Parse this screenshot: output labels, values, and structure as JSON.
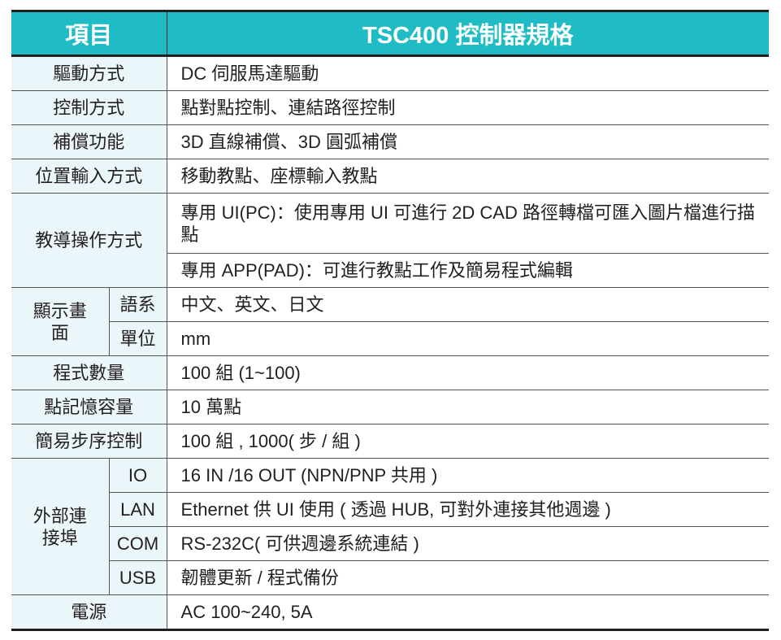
{
  "header": {
    "item": "項目",
    "spec": "TSC400 控制器規格"
  },
  "rows": {
    "drive": {
      "label": "驅動方式",
      "value": "DC 伺服馬達驅動"
    },
    "control": {
      "label": "控制方式",
      "value": "點對點控制、連結路徑控制"
    },
    "comp": {
      "label": "補償功能",
      "value": "3D 直線補償、3D 圓弧補償"
    },
    "pos": {
      "label": "位置輸入方式",
      "value": "移動教點、座標輸入教點"
    },
    "teach": {
      "label": "教導操作方式",
      "values": [
        "專用 UI(PC)：使用專用 UI 可進行 2D CAD 路徑轉檔可匯入圖片檔進行描點",
        "專用 APP(PAD)：可進行教點工作及簡易程式編輯"
      ]
    },
    "display": {
      "label": "顯示畫面",
      "subs": [
        {
          "label": "語系",
          "value": "中文、英文、日文"
        },
        {
          "label": "單位",
          "value": "mm"
        }
      ]
    },
    "programs": {
      "label": "程式數量",
      "value": "100 組 (1~100)"
    },
    "memory": {
      "label": "點記憶容量",
      "value": "10 萬點"
    },
    "steps": {
      "label": "簡易步序控制",
      "value": "100 組 , 1000( 步 / 組 )"
    },
    "ports": {
      "label": "外部連接埠",
      "subs": [
        {
          "label": "IO",
          "value": "16 IN /16 OUT (NPN/PNP 共用 )"
        },
        {
          "label": "LAN",
          "value": "Ethernet 供 UI 使用 ( 透過 HUB, 可對外連接其他週邊 )"
        },
        {
          "label": "COM",
          "value": "RS-232C( 可供週邊系統連結 )"
        },
        {
          "label": "USB",
          "value": "韌體更新 / 程式備份"
        }
      ]
    },
    "power": {
      "label": "電源",
      "value": "AC 100~240, 5A"
    }
  },
  "colors": {
    "header": "#20bcc6",
    "label_bg": "#eaf6f9"
  }
}
